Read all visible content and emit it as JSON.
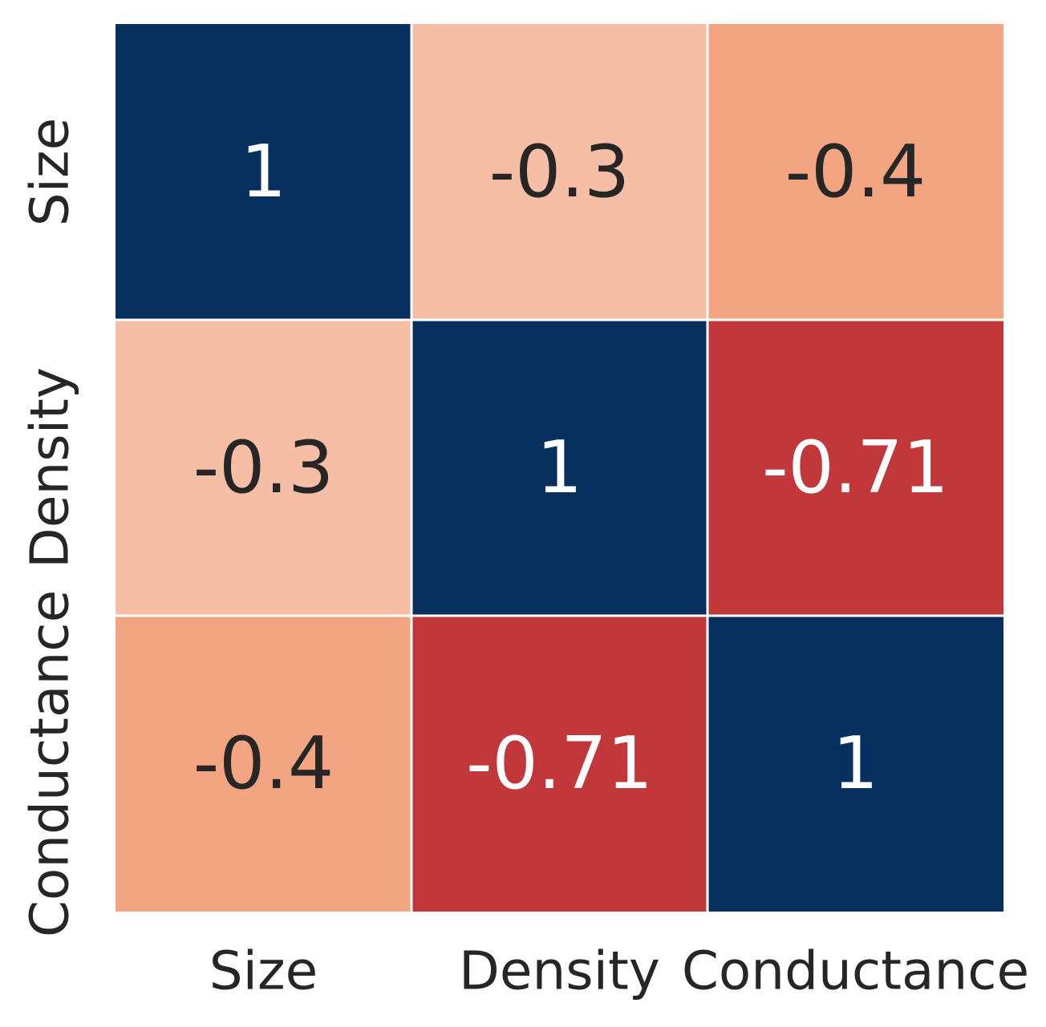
{
  "chart_data": {
    "type": "heatmap",
    "title": "",
    "xlabel": "",
    "ylabel": "",
    "x_categories": [
      "Size",
      "Density",
      "Conductance"
    ],
    "y_categories": [
      "Size",
      "Density",
      "Conductance"
    ],
    "values": [
      [
        1,
        -0.3,
        -0.4
      ],
      [
        -0.3,
        1,
        -0.71
      ],
      [
        -0.4,
        -0.71,
        1
      ]
    ],
    "value_labels": [
      [
        "1",
        "-0.3",
        "-0.4"
      ],
      [
        "-0.3",
        "1",
        "-0.71"
      ],
      [
        "-0.4",
        "-0.71",
        "1"
      ]
    ],
    "colormap": "RdBu",
    "color_range": [
      -1,
      1
    ],
    "colorbar": false,
    "colors": {
      "strong_positive": "#08305f",
      "weak_negative": "#f6bea5",
      "moderate_negative": "#f3a582",
      "strong_negative": "#c1373a",
      "grid_line": "#ffffff",
      "dark_text": "#262626",
      "light_text": "#ffffff"
    }
  }
}
